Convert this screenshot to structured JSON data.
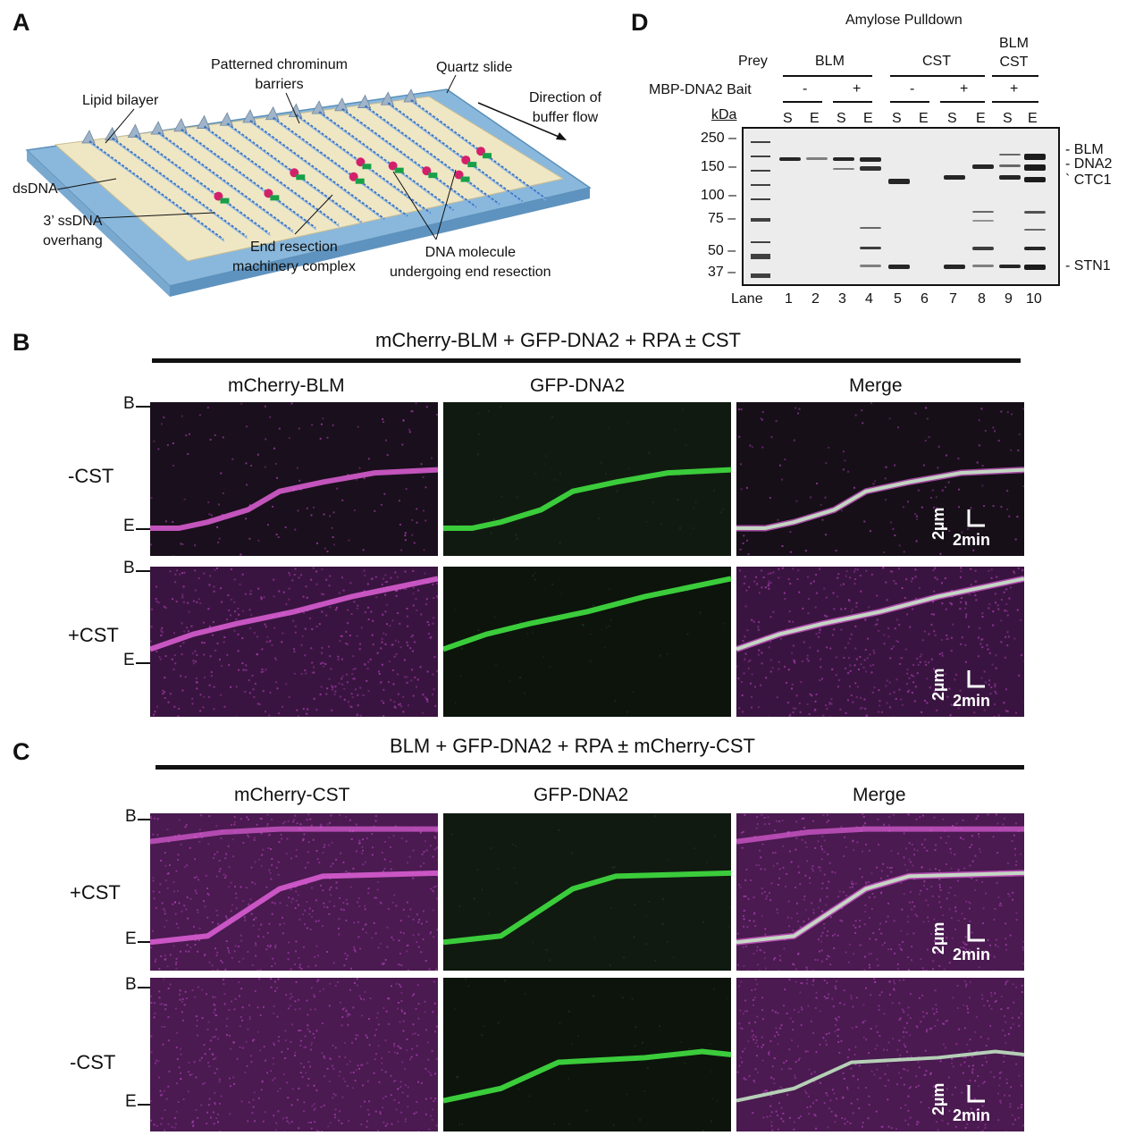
{
  "panels": {
    "a": "A",
    "b": "B",
    "c": "C",
    "d": "D"
  },
  "panel_a": {
    "patterned_barriers": "Patterned chrominum\nbarriers",
    "quartz_slide": "Quartz slide",
    "lipid_bilayer": "Lipid bilayer",
    "direction_flow": "Direction of\nbuffer flow",
    "dsdna": "dsDNA",
    "ssdna_overhang": "3’ ssDNA\noverhang",
    "end_resection_complex": "End resection\nmachinery complex",
    "dna_molecule": "DNA molecule\nundergoing end resection"
  },
  "panel_d": {
    "title": "Amylose Pulldown",
    "prey_label": "Prey",
    "bait_label": "MBP-DNA2 Bait",
    "kda_label": "kDa",
    "lane_label": "Lane",
    "prey_groups": [
      "BLM",
      "CST",
      "BLM\nCST"
    ],
    "bait_signs": [
      "-",
      "+",
      "-",
      "+",
      "+"
    ],
    "se_labels": [
      "S",
      "E",
      "S",
      "E",
      "S",
      "E",
      "S",
      "E",
      "S",
      "E"
    ],
    "lanes": [
      "1",
      "2",
      "3",
      "4",
      "5",
      "6",
      "7",
      "8",
      "9",
      "10"
    ],
    "markers": [
      "250",
      "150",
      "100",
      "75",
      "50",
      "37"
    ],
    "bands": [
      "- BLM",
      "- DNA2",
      "` CTC1",
      "- STN1"
    ]
  },
  "panel_b": {
    "title": "mCherry-BLM + GFP-DNA2 + RPA ± CST",
    "cols": [
      "mCherry-BLM",
      "GFP-DNA2",
      "Merge"
    ],
    "rows": [
      "-CST",
      "+CST"
    ],
    "b_tick": "B",
    "e_tick": "E",
    "scale_um": "2µm",
    "scale_min": "2min"
  },
  "panel_c": {
    "title": "BLM + GFP-DNA2 + RPA ± mCherry-CST",
    "cols": [
      "mCherry-CST",
      "GFP-DNA2",
      "Merge"
    ],
    "rows": [
      "+CST",
      "-CST"
    ],
    "b_tick": "B",
    "e_tick": "E",
    "scale_um": "2µm",
    "scale_min": "2min"
  },
  "colors": {
    "magenta": "#e060d8",
    "green": "#40e040",
    "slide": "#8ab8dc",
    "bilayer": "#efe6c4"
  }
}
